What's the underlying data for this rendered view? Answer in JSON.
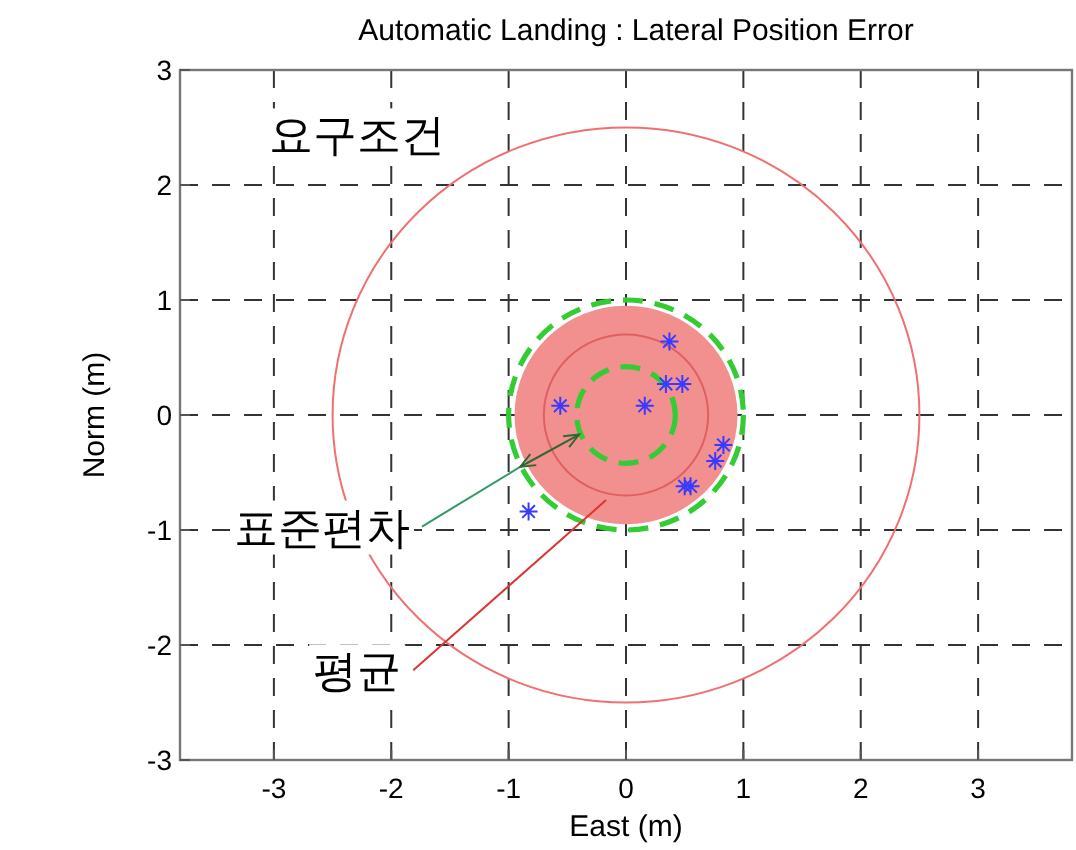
{
  "chart_data": {
    "type": "scatter",
    "title": "Automatic Landing : Lateral Position Error",
    "xlabel": "East (m)",
    "ylabel": "Norm (m)",
    "xlim": [
      -3.8,
      3.8
    ],
    "ylim": [
      -3,
      3
    ],
    "xticks": [
      -3,
      -2,
      -1,
      0,
      1,
      2,
      3
    ],
    "yticks": [
      -3,
      -2,
      -1,
      0,
      1,
      2,
      3
    ],
    "grid": true,
    "series": [
      {
        "type": "scatter",
        "color": "#3a3aff",
        "marker": "cross",
        "x": [
          0.37,
          0.34,
          0.48,
          -0.56,
          0.16,
          0.83,
          0.76,
          0.5,
          0.55,
          -0.83
        ],
        "values": [
          0.64,
          0.27,
          0.27,
          0.08,
          0.08,
          -0.26,
          -0.4,
          -0.62,
          -0.62,
          -0.84
        ]
      }
    ],
    "annotations": [
      "요구조건",
      "표준편차",
      "평균"
    ]
  }
}
